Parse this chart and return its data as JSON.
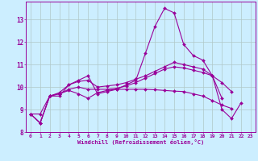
{
  "xlabel": "Windchill (Refroidissement éolien,°C)",
  "background_color": "#cceeff",
  "line_color": "#990099",
  "grid_color": "#b0c8c8",
  "xlim": [
    -0.5,
    23.5
  ],
  "ylim": [
    8.0,
    13.8
  ],
  "yticks": [
    8,
    9,
    10,
    11,
    12,
    13
  ],
  "xticks": [
    0,
    1,
    2,
    3,
    4,
    5,
    6,
    7,
    8,
    9,
    10,
    11,
    12,
    13,
    14,
    15,
    16,
    17,
    18,
    19,
    20,
    21,
    22,
    23
  ],
  "series": [
    [
      8.8,
      8.4,
      9.6,
      9.6,
      10.1,
      10.3,
      10.5,
      9.7,
      9.8,
      9.9,
      10.1,
      10.3,
      11.5,
      12.7,
      13.5,
      13.3,
      11.9,
      11.4,
      11.2,
      10.5,
      9.0,
      8.6,
      9.3,
      null
    ],
    [
      8.8,
      8.4,
      9.6,
      9.7,
      9.9,
      10.0,
      9.9,
      9.9,
      9.9,
      9.95,
      10.05,
      10.2,
      10.4,
      10.6,
      10.8,
      10.9,
      10.85,
      10.75,
      10.65,
      10.5,
      10.2,
      9.8,
      null,
      null
    ],
    [
      8.8,
      8.4,
      9.6,
      9.75,
      10.1,
      10.25,
      10.3,
      10.0,
      10.05,
      10.1,
      10.2,
      10.35,
      10.5,
      10.7,
      10.9,
      11.1,
      11.0,
      10.9,
      10.8,
      10.5,
      9.5,
      null,
      null,
      null
    ],
    [
      8.8,
      8.8,
      9.6,
      9.7,
      9.85,
      9.7,
      9.5,
      9.75,
      9.85,
      9.9,
      9.9,
      9.9,
      9.9,
      9.88,
      9.85,
      9.82,
      9.8,
      9.7,
      9.6,
      9.4,
      9.2,
      9.05,
      null,
      null
    ]
  ]
}
